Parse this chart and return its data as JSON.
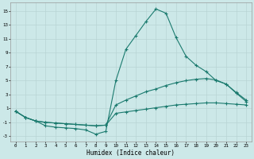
{
  "xlabel": "Humidex (Indice chaleur)",
  "background_color": "#cce8e8",
  "grid_color": "#b8d4d4",
  "line_color": "#1a7a6e",
  "xlim": [
    -0.5,
    23.5
  ],
  "ylim": [
    -3.8,
    16.2
  ],
  "xticks": [
    0,
    1,
    2,
    3,
    4,
    5,
    6,
    7,
    8,
    9,
    10,
    11,
    12,
    13,
    14,
    15,
    16,
    17,
    18,
    19,
    20,
    21,
    22,
    23
  ],
  "yticks": [
    -3,
    -1,
    1,
    3,
    5,
    7,
    9,
    11,
    13,
    15
  ],
  "line1_x": [
    0,
    1,
    2,
    3,
    4,
    5,
    6,
    7,
    8,
    9,
    10,
    11,
    12,
    13,
    14,
    15,
    16,
    17,
    18,
    19,
    20,
    21,
    22,
    23
  ],
  "line1_y": [
    0.6,
    -0.3,
    -0.8,
    -1.5,
    -1.7,
    -1.8,
    -1.9,
    -2.1,
    -2.7,
    -2.3,
    5.0,
    9.5,
    11.5,
    13.5,
    15.3,
    14.7,
    11.2,
    8.5,
    7.2,
    6.3,
    5.0,
    4.5,
    3.2,
    2.0
  ],
  "line2_x": [
    0,
    1,
    2,
    3,
    4,
    5,
    6,
    7,
    8,
    9,
    10,
    11,
    12,
    13,
    14,
    15,
    16,
    17,
    18,
    19,
    20,
    21,
    22,
    23
  ],
  "line2_y": [
    0.6,
    -0.3,
    -0.8,
    -1.0,
    -1.1,
    -1.2,
    -1.3,
    -1.4,
    -1.5,
    -1.4,
    1.5,
    2.2,
    2.8,
    3.4,
    3.8,
    4.3,
    4.7,
    5.0,
    5.2,
    5.3,
    5.1,
    4.5,
    3.3,
    2.2
  ],
  "line3_x": [
    0,
    1,
    2,
    3,
    4,
    5,
    6,
    7,
    8,
    9,
    10,
    11,
    12,
    13,
    14,
    15,
    16,
    17,
    18,
    19,
    20,
    21,
    22,
    23
  ],
  "line3_y": [
    0.6,
    -0.3,
    -0.8,
    -1.0,
    -1.1,
    -1.2,
    -1.3,
    -1.4,
    -1.5,
    -1.4,
    0.3,
    0.5,
    0.7,
    0.9,
    1.1,
    1.3,
    1.5,
    1.6,
    1.7,
    1.8,
    1.8,
    1.7,
    1.6,
    1.5
  ]
}
